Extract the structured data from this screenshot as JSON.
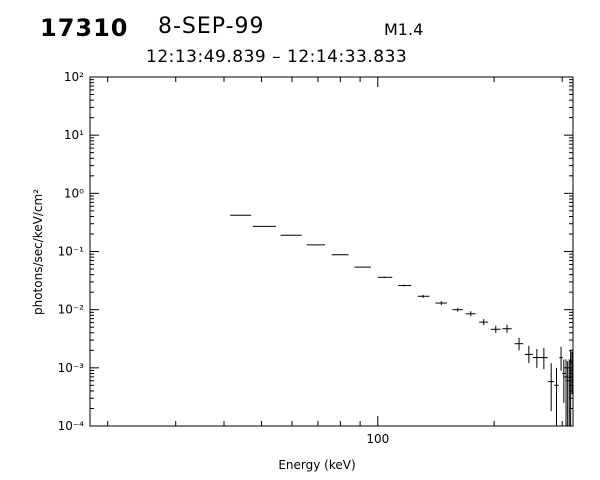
{
  "header": {
    "event_id": "17310",
    "date": "8-SEP-99",
    "flare_class": "M1.4",
    "time_range": "12:13:49.839  –  12:14:33.833"
  },
  "chart_data": {
    "type": "scatter",
    "xlabel": "Energy (keV)",
    "ylabel": "photons/sec/keV/cm²",
    "x_scale": "log",
    "y_scale": "log",
    "xlim": [
      18,
      320
    ],
    "ylim": [
      0.0001,
      100
    ],
    "x_tick_labels": [
      "100"
    ],
    "y_tick_labels": [
      "10⁻⁴",
      "10⁻³",
      "10⁻²",
      "10⁻¹",
      "10⁰",
      "10¹",
      "10²"
    ],
    "grid": false,
    "series": [
      {
        "marker": "error-cross",
        "points": [
          {
            "x": 44.0,
            "xlo": 41.5,
            "xhi": 47.0,
            "y": 0.42,
            "ylo": 0.42,
            "yhi": 0.42
          },
          {
            "x": 51.0,
            "xlo": 47.5,
            "xhi": 54.5,
            "y": 0.27,
            "ylo": 0.27,
            "yhi": 0.27
          },
          {
            "x": 59.5,
            "xlo": 56.0,
            "xhi": 63.5,
            "y": 0.19,
            "ylo": 0.19,
            "yhi": 0.19
          },
          {
            "x": 69.0,
            "xlo": 65.5,
            "xhi": 73.0,
            "y": 0.13,
            "ylo": 0.13,
            "yhi": 0.13
          },
          {
            "x": 79.5,
            "xlo": 76.0,
            "xhi": 84.0,
            "y": 0.088,
            "ylo": 0.088,
            "yhi": 0.088
          },
          {
            "x": 91.0,
            "xlo": 87.0,
            "xhi": 96.0,
            "y": 0.054,
            "ylo": 0.054,
            "yhi": 0.054
          },
          {
            "x": 104.0,
            "xlo": 100.0,
            "xhi": 109.0,
            "y": 0.036,
            "ylo": 0.035,
            "yhi": 0.037
          },
          {
            "x": 117.0,
            "xlo": 113.0,
            "xhi": 122.0,
            "y": 0.026,
            "ylo": 0.025,
            "yhi": 0.027
          },
          {
            "x": 131.0,
            "xlo": 127.0,
            "xhi": 136.0,
            "y": 0.017,
            "ylo": 0.016,
            "yhi": 0.018
          },
          {
            "x": 146.0,
            "xlo": 141.0,
            "xhi": 151.0,
            "y": 0.013,
            "ylo": 0.012,
            "yhi": 0.014
          },
          {
            "x": 161.0,
            "xlo": 156.0,
            "xhi": 166.0,
            "y": 0.01,
            "ylo": 0.0092,
            "yhi": 0.0108
          },
          {
            "x": 174.0,
            "xlo": 169.0,
            "xhi": 179.0,
            "y": 0.0085,
            "ylo": 0.0077,
            "yhi": 0.0094
          },
          {
            "x": 188.0,
            "xlo": 183.0,
            "xhi": 193.0,
            "y": 0.0061,
            "ylo": 0.0054,
            "yhi": 0.0069
          },
          {
            "x": 202.0,
            "xlo": 196.0,
            "xhi": 208.0,
            "y": 0.0046,
            "ylo": 0.004,
            "yhi": 0.0053
          },
          {
            "x": 216.0,
            "xlo": 210.0,
            "xhi": 222.0,
            "y": 0.0047,
            "ylo": 0.004,
            "yhi": 0.0055
          },
          {
            "x": 232.0,
            "xlo": 226.0,
            "xhi": 238.0,
            "y": 0.0026,
            "ylo": 0.002,
            "yhi": 0.0033
          },
          {
            "x": 246.0,
            "xlo": 240.0,
            "xhi": 252.0,
            "y": 0.0017,
            "ylo": 0.0012,
            "yhi": 0.0024
          },
          {
            "x": 258.0,
            "xlo": 252.0,
            "xhi": 264.0,
            "y": 0.0015,
            "ylo": 0.001,
            "yhi": 0.0021
          },
          {
            "x": 269.0,
            "xlo": 263.0,
            "xhi": 275.0,
            "y": 0.0015,
            "ylo": 0.00095,
            "yhi": 0.0022
          },
          {
            "x": 281.0,
            "xlo": 276.0,
            "xhi": 286.0,
            "y": 0.00058,
            "ylo": 0.00018,
            "yhi": 0.0012
          },
          {
            "x": 290.0,
            "xlo": 286.0,
            "xhi": 294.0,
            "y": 0.0005,
            "ylo": 0.0001,
            "yhi": 0.001
          },
          {
            "x": 298.0,
            "xlo": 295.0,
            "xhi": 301.0,
            "y": 0.0015,
            "ylo": 0.0009,
            "yhi": 0.0023
          },
          {
            "x": 303.0,
            "xlo": 300.0,
            "xhi": 306.0,
            "y": 0.0008,
            "ylo": 0.00025,
            "yhi": 0.0014
          },
          {
            "x": 307.0,
            "xlo": 304.0,
            "xhi": 310.0,
            "y": 0.0007,
            "ylo": 0.0001,
            "yhi": 0.0014
          },
          {
            "x": 310.0,
            "xlo": 307.5,
            "xhi": 312.5,
            "y": 0.0006,
            "ylo": 0.0001,
            "yhi": 0.0013
          },
          {
            "x": 313.0,
            "xlo": 311.0,
            "xhi": 315.0,
            "y": 0.00068,
            "ylo": 0.0001,
            "yhi": 0.0014
          },
          {
            "x": 315.5,
            "xlo": 313.5,
            "xhi": 317.5,
            "y": 0.0013,
            "ylo": 0.0001,
            "yhi": 0.002
          },
          {
            "x": 318.0,
            "xlo": 316.5,
            "xhi": 319.5,
            "y": 0.0012,
            "ylo": 0.00035,
            "yhi": 0.0019
          }
        ]
      }
    ]
  }
}
